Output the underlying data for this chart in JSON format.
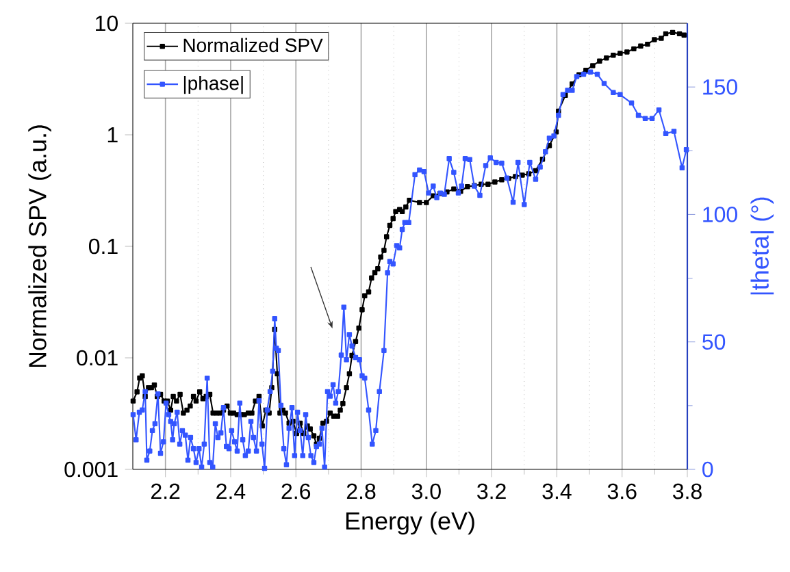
{
  "chart_data": {
    "type": "line",
    "xlabel": "Energy (eV)",
    "ylabel": "Normalized SPV (a.u.)",
    "y2label": "|theta| (°)",
    "xlim": [
      2.1,
      3.8
    ],
    "xticks": [
      2.2,
      2.4,
      2.6,
      2.8,
      {
        "value": 3.0,
        "label": "3.0"
      },
      3.2,
      3.4,
      3.6,
      3.8
    ],
    "ylim": [
      0.001,
      10
    ],
    "yticks": [
      0.001,
      0.01,
      0.1,
      1,
      10
    ],
    "y2lim": [
      0,
      175
    ],
    "y2ticks": [
      0,
      50,
      100,
      150
    ],
    "log": "y",
    "grid": "x",
    "legend": "top left",
    "marker": "square",
    "series": [
      {
        "name": "Normalized SPV",
        "color": "#000000",
        "x": [
          2.101,
          2.113,
          2.121,
          2.129,
          2.138,
          2.148,
          2.157,
          2.166,
          2.175,
          2.185,
          2.196,
          2.206,
          2.216,
          2.224,
          2.234,
          2.245,
          2.255,
          2.266,
          2.276,
          2.286,
          2.294,
          2.305,
          2.315,
          2.325,
          2.336,
          2.346,
          2.357,
          2.367,
          2.378,
          2.389,
          2.399,
          2.409,
          2.42,
          2.431,
          2.442,
          2.454,
          2.465,
          2.476,
          2.487,
          2.497,
          2.508,
          2.518,
          2.526,
          2.535,
          2.543,
          2.551,
          2.56,
          2.568,
          2.579,
          2.591,
          2.602,
          2.613,
          2.624,
          2.635,
          2.644,
          2.655,
          2.663,
          2.672,
          2.683,
          2.694,
          2.705,
          2.716,
          2.728,
          2.736,
          2.744,
          2.755,
          2.764,
          2.772,
          2.783,
          2.793,
          2.803,
          2.811,
          2.823,
          2.832,
          2.842,
          2.851,
          2.86,
          2.87,
          2.878,
          2.888,
          2.898,
          2.906,
          2.918,
          2.926,
          2.937,
          2.948,
          2.979,
          3.0,
          3.021,
          3.042,
          3.063,
          3.084,
          3.105,
          3.126,
          3.147,
          3.168,
          3.189,
          3.21,
          3.231,
          3.252,
          3.273,
          3.294,
          3.314,
          3.335,
          3.356,
          3.377,
          3.398,
          3.405,
          3.426,
          3.447,
          3.468,
          3.489,
          3.51,
          3.531,
          3.552,
          3.573,
          3.594,
          3.615,
          3.636,
          3.657,
          3.678,
          3.699,
          3.72,
          3.734,
          3.755,
          3.776,
          3.79
        ],
        "values": [
          0.0041,
          0.00495,
          0.0066,
          0.0069,
          0.0045,
          0.0054,
          0.0054,
          0.0057,
          0.0045,
          0.0047,
          0.0041,
          0.0041,
          0.0034,
          0.0045,
          0.0041,
          0.0047,
          0.0032,
          0.0034,
          0.0037,
          0.0045,
          0.0041,
          0.00495,
          0.0043,
          0.0045,
          0.0047,
          0.0032,
          0.0032,
          0.0032,
          0.0034,
          0.0037,
          0.0032,
          0.0032,
          0.0031,
          0.0031,
          0.0031,
          0.0032,
          0.0032,
          0.0041,
          0.0045,
          0.00245,
          0.0034,
          0.0032,
          0.0054,
          0.018,
          0.0072,
          0.0032,
          0.0034,
          0.0032,
          0.0026,
          0.0027,
          0.0021,
          0.0026,
          0.0021,
          0.00245,
          0.0023,
          0.002,
          0.00168,
          0.0019,
          0.0026,
          0.0027,
          0.0032,
          0.003,
          0.003,
          0.0034,
          0.0039,
          0.0054,
          0.0072,
          0.0105,
          0.014,
          0.0185,
          0.027,
          0.036,
          0.039,
          0.052,
          0.058,
          0.063,
          0.08,
          0.092,
          0.122,
          0.154,
          0.177,
          0.205,
          0.214,
          0.205,
          0.225,
          0.259,
          0.247,
          0.247,
          0.284,
          0.298,
          0.307,
          0.327,
          0.312,
          0.343,
          0.35,
          0.36,
          0.36,
          0.377,
          0.395,
          0.407,
          0.422,
          0.435,
          0.447,
          0.477,
          0.604,
          0.8,
          1.06,
          1.63,
          2.26,
          2.86,
          3.45,
          3.79,
          4.17,
          4.58,
          4.89,
          5.17,
          5.37,
          5.53,
          5.9,
          6.25,
          6.49,
          7.13,
          7.33,
          8.05,
          8.28,
          8.05,
          7.83
        ]
      },
      {
        "name": "|phase|",
        "color": "#3355ff",
        "axis": "y2",
        "x": [
          2.101,
          2.11,
          2.12,
          2.129,
          2.138,
          2.143,
          2.152,
          2.16,
          2.168,
          2.177,
          2.185,
          2.194,
          2.202,
          2.21,
          2.216,
          2.222,
          2.227,
          2.236,
          2.244,
          2.252,
          2.261,
          2.269,
          2.277,
          2.286,
          2.294,
          2.303,
          2.311,
          2.319,
          2.328,
          2.336,
          2.345,
          2.353,
          2.361,
          2.37,
          2.378,
          2.387,
          2.395,
          2.403,
          2.412,
          2.42,
          2.428,
          2.437,
          2.445,
          2.454,
          2.462,
          2.47,
          2.479,
          2.487,
          2.496,
          2.504,
          2.512,
          2.521,
          2.529,
          2.535,
          2.54,
          2.546,
          2.554,
          2.563,
          2.571,
          2.579,
          2.588,
          2.596,
          2.605,
          2.613,
          2.621,
          2.63,
          2.638,
          2.646,
          2.655,
          2.663,
          2.672,
          2.68,
          2.688,
          2.697,
          2.705,
          2.714,
          2.722,
          2.73,
          2.739,
          2.747,
          2.755,
          2.764,
          2.772,
          2.783,
          2.795,
          2.803,
          2.811,
          2.823,
          2.834,
          2.845,
          2.856,
          2.87,
          2.881,
          2.888,
          2.898,
          2.909,
          2.918,
          2.926,
          2.934,
          2.946,
          2.965,
          2.979,
          2.993,
          3.007,
          3.021,
          3.032,
          3.043,
          3.055,
          3.07,
          3.084,
          3.098,
          3.108,
          3.119,
          3.133,
          3.147,
          3.164,
          3.182,
          3.196,
          3.214,
          3.231,
          3.247,
          3.266,
          3.281,
          3.3,
          3.317,
          3.335,
          3.349,
          3.365,
          3.377,
          3.391,
          3.405,
          3.419,
          3.433,
          3.447,
          3.461,
          3.482,
          3.503,
          3.524,
          3.545,
          3.573,
          3.594,
          3.629,
          3.65,
          3.671,
          3.692,
          3.713,
          3.734,
          3.759,
          3.784,
          3.797
        ],
        "values": [
          21.5,
          11.6,
          22.4,
          23.3,
          30.5,
          3.6,
          7.2,
          15.2,
          17.9,
          29.6,
          6.3,
          10.8,
          26,
          21.5,
          18.8,
          11.6,
          17.9,
          22.4,
          9.9,
          15.2,
          13.4,
          3.6,
          12.5,
          8.1,
          2.7,
          8.1,
          0.9,
          9.9,
          35.8,
          2.7,
          0.9,
          17.9,
          12.5,
          14.3,
          24.2,
          9,
          8.1,
          15.2,
          10.8,
          7.2,
          26,
          11.6,
          5.4,
          7.2,
          18.8,
          12.5,
          7.2,
          26.9,
          9.9,
          0.4,
          23.3,
          30.5,
          38.5,
          59.1,
          47.5,
          46.6,
          25.1,
          8.1,
          1.8,
          16.1,
          24.2,
          5.4,
          22.4,
          15.2,
          5.4,
          21.5,
          12.5,
          5.4,
          2.7,
          9,
          9.9,
          16.1,
          0.9,
          30.5,
          28.7,
          33.2,
          26,
          30.5,
          44.8,
          63.6,
          43,
          52.9,
          48.4,
          43.9,
          43,
          36.7,
          35.8,
          23.3,
          9.9,
          15.2,
          30.5,
          46.6,
          77.1,
          81.5,
          80.6,
          87.8,
          86.9,
          94.1,
          96.8,
          96.8,
          115.6,
          117.4,
          116.8,
          108.4,
          111.1,
          106.6,
          108.4,
          107.9,
          121.9,
          116.5,
          108.4,
          111.1,
          121.9,
          121.5,
          111.1,
          107.5,
          119.2,
          122.2,
          120.4,
          120.1,
          114.3,
          104.8,
          120.4,
          103.9,
          120.4,
          113.8,
          118.6,
          124.6,
          129.9,
          130.8,
          138.9,
          147,
          148.7,
          148.7,
          154.1,
          155,
          155.9,
          155,
          151.4,
          147.8,
          147,
          143.7,
          138.9,
          137.6,
          137.6,
          141,
          131.7,
          132.6,
          118.3,
          125.4
        ]
      }
    ]
  }
}
